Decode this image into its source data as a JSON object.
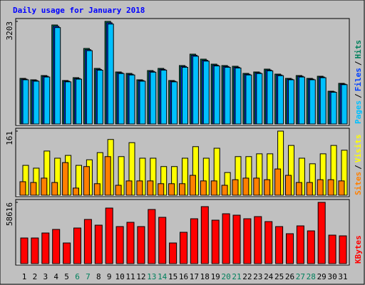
{
  "chart_data": [
    {
      "type": "bar",
      "title": "Daily usage for January 2018",
      "title_color": "#0000ff",
      "legend_separator": "/",
      "ylim": [
        0,
        3203
      ],
      "yticks": [
        3203
      ],
      "series": [
        {
          "name": "Hits",
          "color": "#00805c",
          "values": [
            1423,
            1379,
            1512,
            3091,
            1357,
            1446,
            2358,
            1735,
            3203,
            1624,
            1579,
            1379,
            1668,
            1735,
            1357,
            1824,
            2180,
            2024,
            1868,
            1824,
            1802,
            1579,
            1624,
            1713,
            1557,
            1423,
            1512,
            1423,
            1490,
            1023,
            1268
          ]
        },
        {
          "name": "Files",
          "color": "#0040ff",
          "values": [
            1400,
            1356,
            1488,
            3050,
            1335,
            1420,
            2320,
            1705,
            3160,
            1598,
            1552,
            1356,
            1640,
            1706,
            1334,
            1795,
            2145,
            1990,
            1838,
            1795,
            1772,
            1552,
            1598,
            1684,
            1530,
            1400,
            1488,
            1400,
            1466,
            1005,
            1246
          ]
        },
        {
          "name": "Pages",
          "color": "#00c0ff",
          "values": [
            1380,
            1336,
            1466,
            3010,
            1316,
            1400,
            2290,
            1680,
            3120,
            1575,
            1530,
            1336,
            1617,
            1682,
            1315,
            1770,
            2115,
            1962,
            1812,
            1770,
            1748,
            1530,
            1575,
            1660,
            1508,
            1380,
            1466,
            1380,
            1445,
            990,
            1228
          ]
        }
      ]
    },
    {
      "type": "bar",
      "legend_separator": "/",
      "ylim": [
        0,
        161
      ],
      "yticks": [
        161
      ],
      "series": [
        {
          "name": "Visits",
          "color": "#ffff00",
          "values": [
            75,
            68,
            111,
            93,
            100,
            75,
            89,
            107,
            140,
            97,
            132,
            93,
            93,
            72,
            72,
            93,
            122,
            93,
            118,
            57,
            97,
            97,
            104,
            104,
            161,
            125,
            93,
            79,
            104,
            125,
            113
          ]
        },
        {
          "name": "Sites",
          "color": "#ff8000",
          "values": [
            34,
            32,
            43,
            32,
            82,
            18,
            72,
            29,
            97,
            25,
            36,
            36,
            36,
            29,
            29,
            29,
            50,
            36,
            36,
            25,
            39,
            43,
            43,
            39,
            66,
            50,
            32,
            32,
            39,
            39,
            36
          ]
        }
      ]
    },
    {
      "type": "bar",
      "ylim": [
        0,
        58616
      ],
      "yticks": [
        58616
      ],
      "categories": [
        "1",
        "2",
        "3",
        "4",
        "5",
        "6",
        "7",
        "8",
        "9",
        "10",
        "11",
        "12",
        "13",
        "14",
        "15",
        "16",
        "17",
        "18",
        "19",
        "20",
        "21",
        "22",
        "23",
        "24",
        "25",
        "26",
        "27",
        "28",
        "29",
        "30",
        "31"
      ],
      "category_colors": [
        "#000000",
        "#000000",
        "#000000",
        "#000000",
        "#000000",
        "#00805c",
        "#00805c",
        "#000000",
        "#000000",
        "#000000",
        "#000000",
        "#000000",
        "#00805c",
        "#00805c",
        "#000000",
        "#000000",
        "#000000",
        "#000000",
        "#000000",
        "#00805c",
        "#00805c",
        "#000000",
        "#000000",
        "#000000",
        "#000000",
        "#000000",
        "#00805c",
        "#00805c",
        "#000000",
        "#000000",
        "#000000"
      ],
      "series": [
        {
          "name": "KBytes",
          "color": "#ff0000",
          "values": [
            24538,
            24538,
            29309,
            32717,
            19766,
            34079,
            42258,
            36805,
            53163,
            35442,
            39532,
            35442,
            51801,
            44303,
            19766,
            29990,
            42940,
            54527,
            41577,
            47711,
            46348,
            42940,
            44985,
            40214,
            35442,
            28626,
            36124,
            31353,
            58616,
            27263,
            26582
          ]
        }
      ]
    }
  ]
}
